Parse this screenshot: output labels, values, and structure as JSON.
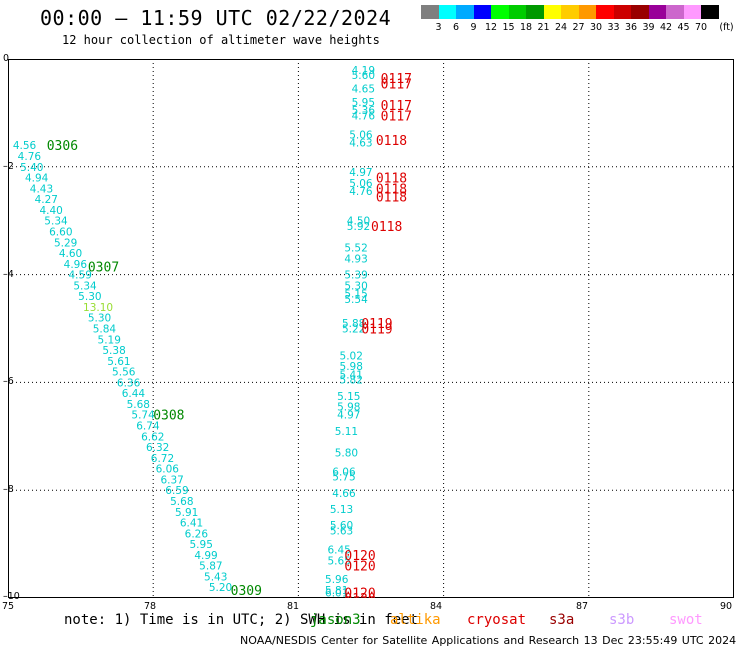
{
  "header": {
    "title": "00:00 – 11:59 UTC 02/22/2024",
    "subtitle": "12 hour collection of altimeter wave heights"
  },
  "legend": {
    "unit": "(ft)",
    "colors": [
      "#7f7f7f",
      "#00ffff",
      "#00aaff",
      "#0000ff",
      "#00ff00",
      "#00cc00",
      "#009900",
      "#ffff00",
      "#ffcc00",
      "#ff9900",
      "#ff0000",
      "#cc0000",
      "#990000",
      "#990099",
      "#cc66cc",
      "#ff99ff",
      "#000000"
    ],
    "labels": [
      "3",
      "6",
      "9",
      "12",
      "15",
      "18",
      "21",
      "24",
      "27",
      "30",
      "33",
      "36",
      "39",
      "42",
      "45",
      "70"
    ]
  },
  "axes": {
    "x_ticks": [
      "75",
      "78",
      "81",
      "84",
      "87",
      "90"
    ],
    "y_ticks": [
      "0",
      "–2",
      "–4",
      "–6",
      "–8",
      "–10"
    ]
  },
  "tracks": [
    {
      "time": "0306",
      "color": "#008800",
      "label_pos": [
        81.5,
        -1.6
      ],
      "points": [
        {
          "lon": 75.1,
          "lat": -1.6,
          "v": "4.56"
        },
        {
          "lon": 75.2,
          "lat": -1.8,
          "v": "4.76"
        },
        {
          "lon": 75.25,
          "lat": -2.0,
          "v": "5.40"
        },
        {
          "lon": 75.35,
          "lat": -2.2,
          "v": "4.94"
        },
        {
          "lon": 75.45,
          "lat": -2.4,
          "v": "4.43"
        },
        {
          "lon": 75.55,
          "lat": -2.6,
          "v": "4.27"
        },
        {
          "lon": 75.65,
          "lat": -2.8,
          "v": "4.40"
        },
        {
          "lon": 75.75,
          "lat": -3.0,
          "v": "5.34"
        },
        {
          "lon": 75.85,
          "lat": -3.2,
          "v": "6.60"
        },
        {
          "lon": 75.95,
          "lat": -3.4,
          "v": "5.29"
        },
        {
          "lon": 76.05,
          "lat": -3.6,
          "v": "4.60"
        },
        {
          "lon": 76.15,
          "lat": -3.8,
          "v": "4.96"
        }
      ]
    },
    {
      "time": "0307",
      "color": "#008800",
      "points": [
        {
          "lon": 76.25,
          "lat": -4.0,
          "v": "4.59"
        },
        {
          "lon": 76.35,
          "lat": -4.2,
          "v": "5.34"
        },
        {
          "lon": 76.45,
          "lat": -4.4,
          "v": "5.30"
        },
        {
          "lon": 76.55,
          "lat": -4.6,
          "v": "13.10",
          "c": "#99dd33"
        },
        {
          "lon": 76.65,
          "lat": -4.8,
          "v": "5.30"
        },
        {
          "lon": 76.75,
          "lat": -5.0,
          "v": "5.84"
        },
        {
          "lon": 76.85,
          "lat": -5.2,
          "v": "5.19"
        },
        {
          "lon": 76.95,
          "lat": -5.4,
          "v": "5.38"
        },
        {
          "lon": 77.05,
          "lat": -5.6,
          "v": "5.61"
        },
        {
          "lon": 77.15,
          "lat": -5.8,
          "v": "5.56"
        },
        {
          "lon": 77.25,
          "lat": -6.0,
          "v": "6.36"
        },
        {
          "lon": 77.35,
          "lat": -6.2,
          "v": "6.44"
        },
        {
          "lon": 77.45,
          "lat": -6.4,
          "v": "5.68"
        }
      ]
    },
    {
      "time": "0308",
      "color": "#008800",
      "points": [
        {
          "lon": 77.55,
          "lat": -6.6,
          "v": "5.74"
        },
        {
          "lon": 77.65,
          "lat": -6.8,
          "v": "6.74"
        },
        {
          "lon": 77.75,
          "lat": -7.0,
          "v": "6.62"
        },
        {
          "lon": 77.85,
          "lat": -7.2,
          "v": "6.32"
        },
        {
          "lon": 77.95,
          "lat": -7.4,
          "v": "6.72"
        },
        {
          "lon": 78.05,
          "lat": -7.6,
          "v": "6.06"
        },
        {
          "lon": 78.15,
          "lat": -7.8,
          "v": "6.37"
        },
        {
          "lon": 78.25,
          "lat": -8.0,
          "v": "6.59"
        },
        {
          "lon": 78.35,
          "lat": -8.2,
          "v": "5.68"
        },
        {
          "lon": 78.45,
          "lat": -8.4,
          "v": "5.91"
        },
        {
          "lon": 78.55,
          "lat": -8.6,
          "v": "6.41"
        },
        {
          "lon": 78.65,
          "lat": -8.8,
          "v": "6.26"
        },
        {
          "lon": 78.75,
          "lat": -9.0,
          "v": "5.95"
        }
      ]
    },
    {
      "time": "0309",
      "color": "#008800",
      "points": [
        {
          "lon": 78.85,
          "lat": -9.2,
          "v": "4.99"
        },
        {
          "lon": 78.95,
          "lat": -9.4,
          "v": "5.87"
        },
        {
          "lon": 79.05,
          "lat": -9.6,
          "v": "5.43"
        },
        {
          "lon": 79.15,
          "lat": -9.8,
          "v": "5.20"
        }
      ]
    },
    {
      "time": "0117",
      "color": "#dd0000",
      "points": [
        {
          "lon": 82.1,
          "lat": -0.2,
          "v": "4.19"
        },
        {
          "lon": 82.1,
          "lat": -0.3,
          "v": "5.60"
        },
        {
          "lon": 82.1,
          "lat": -0.55,
          "v": "4.65"
        },
        {
          "lon": 82.1,
          "lat": -0.8,
          "v": "5.95"
        },
        {
          "lon": 82.1,
          "lat": -0.95,
          "v": "5.36"
        },
        {
          "lon": 82.1,
          "lat": -1.05,
          "v": "4.76"
        }
      ]
    },
    {
      "time": "0118",
      "color": "#dd0000",
      "points": [
        {
          "lon": 82.05,
          "lat": -1.4,
          "v": "5.06"
        },
        {
          "lon": 82.05,
          "lat": -1.55,
          "v": "4.63"
        },
        {
          "lon": 82.05,
          "lat": -2.1,
          "v": "4.97"
        },
        {
          "lon": 82.05,
          "lat": -2.3,
          "v": "5.06"
        },
        {
          "lon": 82.05,
          "lat": -2.45,
          "v": "4.76"
        },
        {
          "lon": 82.0,
          "lat": -3.0,
          "v": "4.50"
        },
        {
          "lon": 82.0,
          "lat": -3.1,
          "v": "5.92"
        },
        {
          "lon": 81.95,
          "lat": -3.5,
          "v": "5.52"
        },
        {
          "lon": 81.95,
          "lat": -3.7,
          "v": "4.93"
        },
        {
          "lon": 81.95,
          "lat": -4.0,
          "v": "5.39"
        },
        {
          "lon": 81.95,
          "lat": -4.2,
          "v": "5.30"
        },
        {
          "lon": 81.95,
          "lat": -4.35,
          "v": "5.15"
        },
        {
          "lon": 81.95,
          "lat": -4.45,
          "v": "5.54"
        }
      ]
    },
    {
      "time": "0119",
      "color": "#dd0000",
      "points": [
        {
          "lon": 81.9,
          "lat": -4.9,
          "v": "5.88"
        },
        {
          "lon": 81.9,
          "lat": -5.0,
          "v": "5.22"
        },
        {
          "lon": 81.85,
          "lat": -5.5,
          "v": "5.02"
        },
        {
          "lon": 81.85,
          "lat": -5.7,
          "v": "5.98"
        },
        {
          "lon": 81.85,
          "lat": -5.85,
          "v": "5.41"
        },
        {
          "lon": 81.85,
          "lat": -5.95,
          "v": "5.82"
        },
        {
          "lon": 81.8,
          "lat": -6.25,
          "v": "5.15"
        },
        {
          "lon": 81.8,
          "lat": -6.45,
          "v": "5.98"
        },
        {
          "lon": 81.8,
          "lat": -6.6,
          "v": "4.97"
        },
        {
          "lon": 81.75,
          "lat": -6.9,
          "v": "5.11"
        },
        {
          "lon": 81.75,
          "lat": -7.3,
          "v": "5.80"
        },
        {
          "lon": 81.7,
          "lat": -7.65,
          "v": "6.06"
        },
        {
          "lon": 81.7,
          "lat": -7.75,
          "v": "5.75"
        },
        {
          "lon": 81.7,
          "lat": -8.05,
          "v": "4.66"
        },
        {
          "lon": 81.65,
          "lat": -8.35,
          "v": "5.13"
        },
        {
          "lon": 81.65,
          "lat": -8.65,
          "v": "5.60"
        },
        {
          "lon": 81.65,
          "lat": -8.75,
          "v": "5.63"
        }
      ]
    },
    {
      "time": "0120",
      "color": "#dd0000",
      "points": [
        {
          "lon": 81.6,
          "lat": -9.1,
          "v": "6.45"
        },
        {
          "lon": 81.6,
          "lat": -9.3,
          "v": "5.65"
        },
        {
          "lon": 81.55,
          "lat": -9.65,
          "v": "5.96"
        },
        {
          "lon": 81.55,
          "lat": -9.85,
          "v": "5.81"
        },
        {
          "lon": 81.55,
          "lat": -9.9,
          "v": "6.01"
        },
        {
          "lon": 81.5,
          "lat": -10.15,
          "v": "6.56"
        },
        {
          "lon": 81.5,
          "lat": -10.45,
          "v": "5.98"
        }
      ]
    }
  ],
  "track_labels": [
    {
      "text": "0117",
      "lon": 82.7,
      "lat": -0.35
    },
    {
      "text": "0117",
      "lon": 82.7,
      "lat": -0.45
    },
    {
      "text": "0117",
      "lon": 82.7,
      "lat": -0.85
    },
    {
      "text": "0117",
      "lon": 82.7,
      "lat": -1.05
    },
    {
      "text": "0118",
      "lon": 82.6,
      "lat": -1.5
    },
    {
      "text": "0118",
      "lon": 82.6,
      "lat": -2.2
    },
    {
      "text": "0118",
      "lon": 82.6,
      "lat": -2.4
    },
    {
      "text": "0118",
      "lon": 82.6,
      "lat": -2.55
    },
    {
      "text": "0118",
      "lon": 82.5,
      "lat": -3.1
    },
    {
      "text": "0119",
      "lon": 82.3,
      "lat": -4.9
    },
    {
      "text": "0119",
      "lon": 82.3,
      "lat": -5.0
    },
    {
      "text": "0120",
      "lon": 81.95,
      "lat": -9.2
    },
    {
      "text": "0120",
      "lon": 81.95,
      "lat": -9.4
    },
    {
      "text": "0120",
      "lon": 81.95,
      "lat": -9.9
    },
    {
      "text": "0120",
      "lon": 81.95,
      "lat": -10.0
    }
  ],
  "green_labels": [
    {
      "text": "0306",
      "lon": 75.8,
      "lat": -1.6
    },
    {
      "text": "0307",
      "lon": 76.65,
      "lat": -3.85
    },
    {
      "text": "0308",
      "lon": 78.0,
      "lat": -6.6
    },
    {
      "text": "0309",
      "lon": 79.6,
      "lat": -9.85
    }
  ],
  "note": {
    "text": "note: 1) Time is in UTC; 2) SWH is in feet",
    "satellites": [
      {
        "name": "jason3",
        "color": "#008800"
      },
      {
        "name": "altika",
        "color": "#ff9900"
      },
      {
        "name": "cryosat",
        "color": "#dd0000"
      },
      {
        "name": "s3a",
        "color": "#990000"
      },
      {
        "name": "s3b",
        "color": "#cc99ff"
      },
      {
        "name": "swot",
        "color": "#ff99ff"
      }
    ]
  },
  "footer": "NOAA/NESDIS Center for Satellite Applications and Research   13 Dec 23:55:49 UTC 2024"
}
